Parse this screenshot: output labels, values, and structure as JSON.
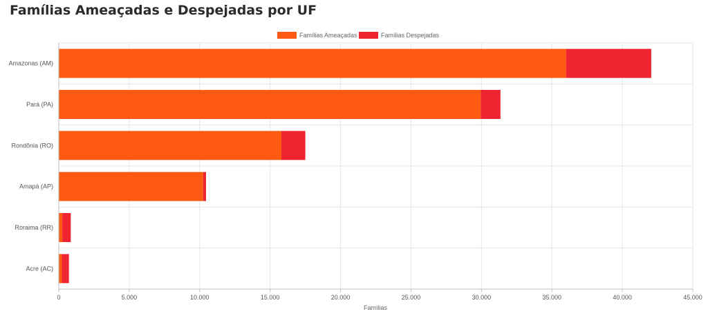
{
  "page": {
    "title": "Famílias Ameaçadas e Despejadas por UF"
  },
  "colors": {
    "ameacadas": "#ff5a12",
    "despejadas": "#ee2530",
    "grid": "#e6e6e6",
    "axis": "#bdbdbd",
    "label": "#555555"
  },
  "chart_data": {
    "type": "bar",
    "orientation": "horizontal",
    "stacked": true,
    "title": "Famílias Ameaçadas e Despejadas por UF",
    "xlabel": "Famílias",
    "ylabel": "",
    "xlim": [
      0,
      45000
    ],
    "x_ticks": [
      0,
      5000,
      10000,
      15000,
      20000,
      25000,
      30000,
      35000,
      40000,
      45000
    ],
    "x_tick_labels": [
      "0",
      "5.000",
      "10.000",
      "15.000",
      "20.000",
      "25.000",
      "30.000",
      "35.000",
      "40.000",
      "45.000"
    ],
    "categories": [
      "Amazonas (AM)",
      "Pará (PA)",
      "Rondônia (RO)",
      "Amapá (AP)",
      "Roraima (RR)",
      "Acre (AC)"
    ],
    "legend_position": "top-center",
    "series": [
      {
        "name": "Famílias Ameaçadas",
        "values": [
          36000,
          29950,
          15800,
          10250,
          250,
          220
        ]
      },
      {
        "name": "Famílias Despejadas",
        "values": [
          6050,
          1400,
          1700,
          200,
          600,
          500
        ]
      }
    ]
  }
}
